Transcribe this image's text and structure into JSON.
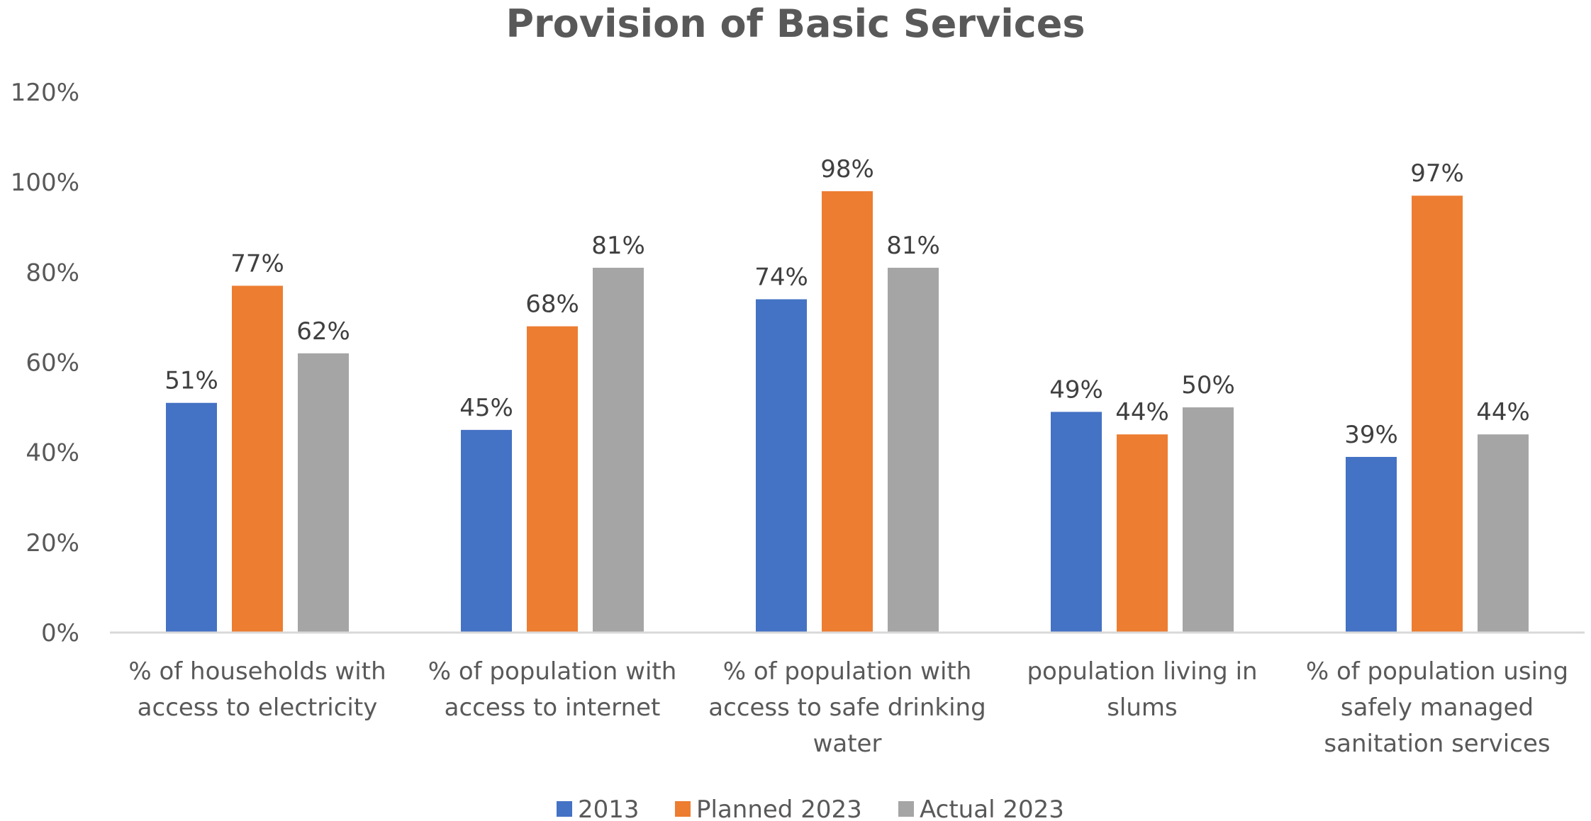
{
  "chart_data": {
    "type": "bar",
    "title": "Provision of Basic Services",
    "xlabel": "",
    "ylabel": "",
    "ylim": [
      0,
      1.2
    ],
    "yticks": [
      0,
      0.2,
      0.4,
      0.6,
      0.8,
      1.0,
      1.2
    ],
    "ytick_labels": [
      "0%",
      "20%",
      "40%",
      "60%",
      "80%",
      "100%",
      "120%"
    ],
    "grid": false,
    "legend_position": "bottom",
    "categories": [
      [
        "% of households with",
        "access to electricity"
      ],
      [
        "% of population with",
        "access to internet"
      ],
      [
        "% of population with",
        "access to safe drinking",
        "water"
      ],
      [
        "population living in",
        "slums"
      ],
      [
        "% of population using",
        "safely managed",
        "sanitation services"
      ]
    ],
    "series": [
      {
        "name": "2013",
        "color": "#4472C4",
        "values": [
          0.51,
          0.45,
          0.74,
          0.49,
          0.39
        ],
        "labels": [
          "51%",
          "45%",
          "74%",
          "49%",
          "39%"
        ]
      },
      {
        "name": "Planned 2023",
        "color": "#ED7D31",
        "values": [
          0.77,
          0.68,
          0.98,
          0.44,
          0.97
        ],
        "labels": [
          "77%",
          "68%",
          "98%",
          "44%",
          "97%"
        ]
      },
      {
        "name": "Actual 2023",
        "color": "#A5A5A5",
        "values": [
          0.62,
          0.81,
          0.81,
          0.5,
          0.44
        ],
        "labels": [
          "62%",
          "81%",
          "81%",
          "50%",
          "44%"
        ]
      }
    ]
  }
}
